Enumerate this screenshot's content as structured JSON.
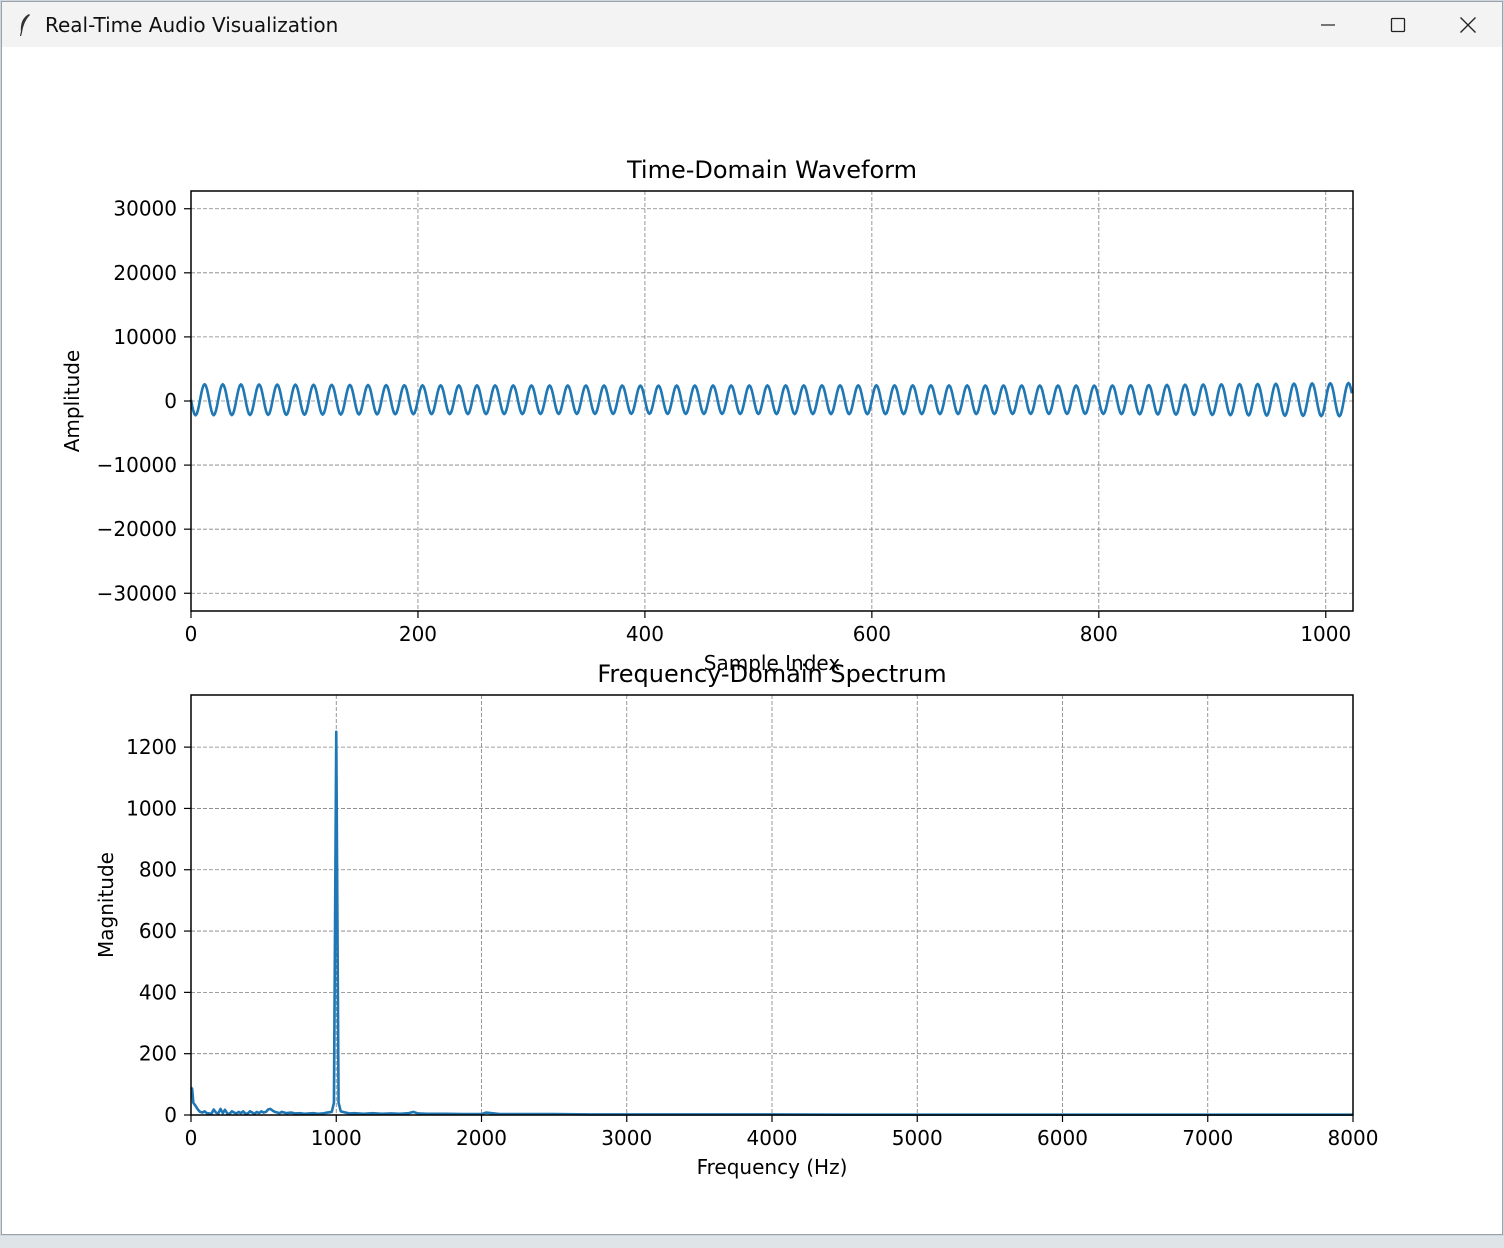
{
  "window": {
    "title": "Real-Time Audio Visualization",
    "icon": "feather-icon",
    "controls": [
      "minimize-icon",
      "maximize-icon",
      "close-icon"
    ]
  },
  "colors": {
    "line": "#1f77b4",
    "grid": "#808080",
    "axis": "#000000",
    "titlebar": "#f3f3f3"
  },
  "chart_data": [
    {
      "type": "line",
      "title": "Time-Domain Waveform",
      "xlabel": "Sample Index",
      "ylabel": "Amplitude",
      "xlim": [
        0,
        1024
      ],
      "ylim": [
        -32768,
        32767
      ],
      "xticks": [
        0,
        200,
        400,
        600,
        800,
        1000
      ],
      "yticks": [
        30000,
        20000,
        10000,
        0,
        -10000,
        -20000,
        -30000
      ],
      "xtick_labels": [
        "0",
        "200",
        "400",
        "600",
        "800",
        "1000"
      ],
      "ytick_labels": [
        "30000",
        "20000",
        "10000",
        "0",
        "−10000",
        "−20000",
        "−30000"
      ],
      "grid": true,
      "series": [
        {
          "samples": 1024,
          "waveform": "sine",
          "cycles": 64,
          "amplitude": 2600,
          "envelope": [
            [
              0,
              2700
            ],
            [
              200,
              2500
            ],
            [
              400,
              2450
            ],
            [
              600,
              2500
            ],
            [
              800,
              2450
            ],
            [
              1000,
              2850
            ],
            [
              1024,
              2900
            ]
          ]
        }
      ]
    },
    {
      "type": "line",
      "title": "Frequency-Domain Spectrum",
      "xlabel": "Frequency (Hz)",
      "ylabel": "Magnitude",
      "xlim": [
        0,
        8000
      ],
      "ylim": [
        0,
        1370
      ],
      "xticks": [
        0,
        1000,
        2000,
        3000,
        4000,
        5000,
        6000,
        7000,
        8000
      ],
      "yticks": [
        0,
        200,
        400,
        600,
        800,
        1000,
        1200
      ],
      "xtick_labels": [
        "0",
        "1000",
        "2000",
        "3000",
        "4000",
        "5000",
        "6000",
        "7000",
        "8000"
      ],
      "ytick_labels": [
        "0",
        "200",
        "400",
        "600",
        "800",
        "1000",
        "1200"
      ],
      "grid": true,
      "series": [
        {
          "x": [
            0,
            8,
            16,
            31,
            47,
            63,
            78,
            94,
            109,
            125,
            141,
            156,
            172,
            188,
            203,
            219,
            234,
            250,
            266,
            281,
            297,
            313,
            328,
            344,
            359,
            375,
            391,
            406,
            422,
            438,
            453,
            469,
            484,
            500,
            516,
            531,
            547,
            563,
            578,
            594,
            609,
            625,
            656,
            688,
            719,
            750,
            781,
            813,
            844,
            875,
            906,
            938,
            969,
            984,
            1000,
            1016,
            1031,
            1063,
            1094,
            1125,
            1188,
            1250,
            1313,
            1375,
            1438,
            1500,
            1531,
            1563,
            1625,
            1750,
            1875,
            2000,
            2031,
            2125,
            2250,
            2375,
            2500,
            2750,
            3000,
            3500,
            4000,
            4500,
            5000,
            5500,
            6000,
            6500,
            7000,
            7500,
            8000
          ],
          "y": [
            90,
            85,
            40,
            30,
            18,
            10,
            8,
            12,
            6,
            5,
            4,
            18,
            8,
            5,
            20,
            6,
            17,
            5,
            4,
            12,
            8,
            5,
            10,
            6,
            12,
            4,
            5,
            12,
            8,
            4,
            10,
            6,
            12,
            8,
            10,
            18,
            20,
            14,
            10,
            8,
            6,
            10,
            6,
            8,
            5,
            6,
            4,
            5,
            6,
            4,
            5,
            8,
            10,
            40,
            1250,
            40,
            12,
            8,
            5,
            6,
            4,
            6,
            4,
            5,
            4,
            6,
            10,
            5,
            4,
            4,
            3,
            3,
            8,
            3,
            3,
            3,
            3,
            2,
            2,
            2,
            2,
            1,
            1,
            1,
            1,
            1,
            1,
            1,
            1
          ]
        }
      ]
    }
  ]
}
